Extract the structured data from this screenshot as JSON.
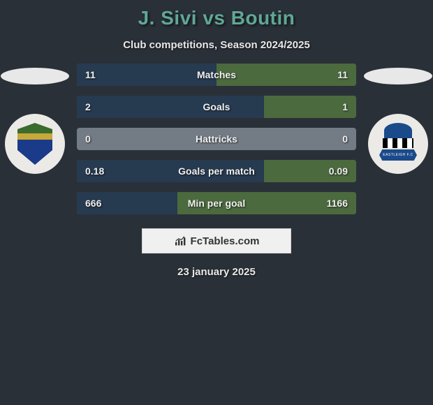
{
  "title": "J. Sivi vs Boutin",
  "subtitle": "Club competitions, Season 2024/2025",
  "date": "23 january 2025",
  "branding": {
    "text": "FcTables.com"
  },
  "colors": {
    "background": "#2a3038",
    "title_color": "#5fa896",
    "bar_track": "#737b85",
    "left_fill": "#263a50",
    "right_fill": "#4b6a3e",
    "text": "#e8e8e8"
  },
  "fontsize": {
    "title": 28,
    "subtitle": 15,
    "bar_label": 14,
    "bar_value": 14,
    "date": 15
  },
  "bars": [
    {
      "label": "Matches",
      "left": "11",
      "right": "11",
      "left_pct": 50,
      "right_pct": 50
    },
    {
      "label": "Goals",
      "left": "2",
      "right": "1",
      "left_pct": 67,
      "right_pct": 33
    },
    {
      "label": "Hattricks",
      "left": "0",
      "right": "0",
      "left_pct": 0,
      "right_pct": 0
    },
    {
      "label": "Goals per match",
      "left": "0.18",
      "right": "0.09",
      "left_pct": 67,
      "right_pct": 33
    },
    {
      "label": "Min per goal",
      "left": "666",
      "right": "1166",
      "left_pct": 36,
      "right_pct": 64
    }
  ],
  "crests": {
    "left": {
      "name": "club-crest-left"
    },
    "right": {
      "name": "club-crest-right",
      "banner": "EASTLEIGH F.C"
    }
  }
}
